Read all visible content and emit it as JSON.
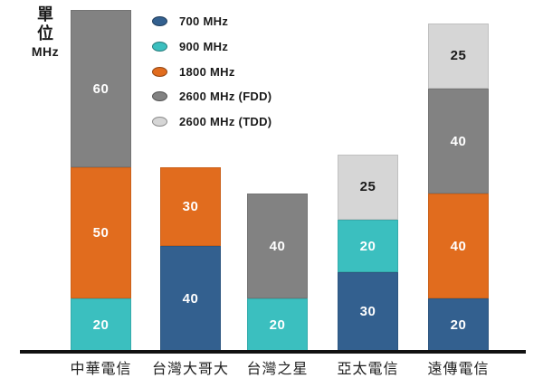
{
  "axis": {
    "unit_label_line1": "單",
    "unit_label_line2": "位",
    "unit_label_line3": "MHz"
  },
  "chart_data": {
    "type": "bar",
    "stacked": true,
    "title": "",
    "xlabel": "",
    "ylabel": "單位 MHz",
    "unit": "MHz",
    "grid": false,
    "legend_position": "top-left",
    "categories": [
      "中華電信",
      "台灣大哥大",
      "台灣之星",
      "亞太電信",
      "遠傳電信"
    ],
    "series": [
      {
        "name": "700 MHz",
        "color": "#33608F",
        "label_color": "#ffffff",
        "values": [
          0,
          40,
          0,
          30,
          20
        ]
      },
      {
        "name": "900 MHz",
        "color": "#3BBFBF",
        "label_color": "#ffffff",
        "values": [
          20,
          0,
          20,
          20,
          0
        ]
      },
      {
        "name": "1800 MHz",
        "color": "#E16C1E",
        "label_color": "#ffffff",
        "values": [
          50,
          30,
          0,
          0,
          40
        ]
      },
      {
        "name": "2600 MHz (FDD)",
        "color": "#828282",
        "label_color": "#ffffff",
        "values": [
          60,
          0,
          40,
          0,
          40
        ]
      },
      {
        "name": "2600 MHz (TDD)",
        "color": "#D6D6D6",
        "label_color": "#1a1a1a",
        "values": [
          0,
          0,
          0,
          25,
          25
        ]
      }
    ],
    "totals": [
      130,
      70,
      60,
      75,
      125
    ]
  }
}
